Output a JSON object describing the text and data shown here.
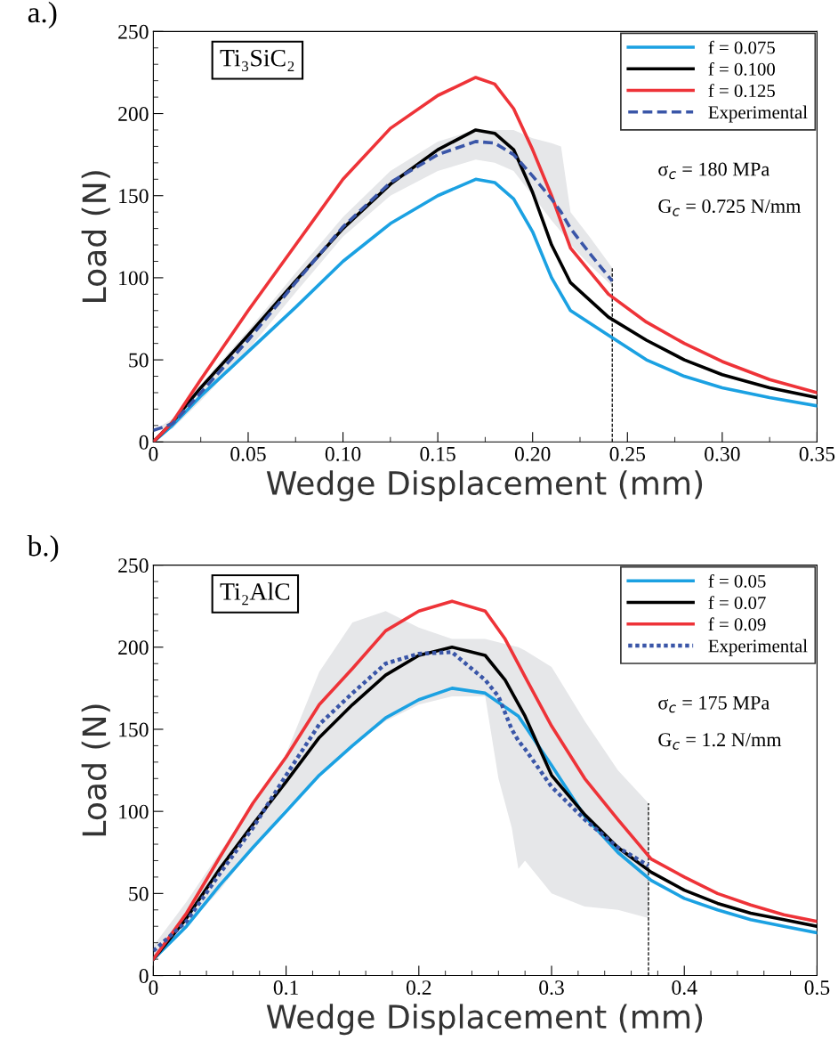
{
  "chart_data": [
    {
      "type": "line",
      "xlabel": "Wedge Displacement (mm)",
      "ylabel": "Load (N)",
      "annotations": [
        "a.)",
        "Ti₃SiC₂",
        "σ$_{c}$ = 180 MPa",
        "G$_{c}$ = 0.725 N/mm"
      ],
      "xlim": [
        0,
        0.35
      ],
      "xticks": [
        0,
        {
          "value": 0.05,
          "label": "0.05"
        },
        {
          "value": 0.1,
          "label": "0.10"
        },
        {
          "value": 0.15,
          "label": "0.15"
        },
        {
          "value": 0.2,
          "label": "0.20"
        },
        {
          "value": 0.25,
          "label": "0.25"
        },
        {
          "value": 0.3,
          "label": "0.30"
        },
        {
          "value": 0.35,
          "label": "0.35"
        }
      ],
      "ylim": [
        0,
        250
      ],
      "yticks": [
        0,
        50,
        100,
        150,
        200,
        250
      ],
      "grid": false,
      "legend": "top right",
      "ref_lines": [
        {
          "axis": "x",
          "value": 0.242,
          "color": "#000000",
          "line_style": "dashed"
        }
      ],
      "series": [
        {
          "name": "f = 0.075",
          "color": "#1ba1e2",
          "line_style": "solid",
          "x": [
            0,
            0.01,
            0.025,
            0.05,
            0.075,
            0.1,
            0.125,
            0.15,
            0.17,
            0.18,
            0.19,
            0.2,
            0.21,
            0.22,
            0.24,
            0.26,
            0.28,
            0.3,
            0.325,
            0.35
          ],
          "values": [
            0,
            10,
            28,
            55,
            82,
            110,
            133,
            150,
            160,
            158,
            148,
            128,
            100,
            80,
            65,
            50,
            40,
            33,
            27,
            22
          ]
        },
        {
          "name": "f = 0.100",
          "color": "#000000",
          "line_style": "solid",
          "x": [
            0,
            0.01,
            0.025,
            0.05,
            0.075,
            0.1,
            0.125,
            0.15,
            0.17,
            0.18,
            0.19,
            0.2,
            0.21,
            0.22,
            0.24,
            0.26,
            0.28,
            0.3,
            0.325,
            0.35
          ],
          "values": [
            0,
            12,
            33,
            65,
            98,
            130,
            157,
            178,
            190,
            188,
            178,
            152,
            120,
            97,
            76,
            62,
            50,
            41,
            33,
            27
          ]
        },
        {
          "name": "f = 0.125",
          "color": "#ee3338",
          "line_style": "solid",
          "x": [
            0,
            0.01,
            0.025,
            0.05,
            0.075,
            0.1,
            0.125,
            0.15,
            0.17,
            0.18,
            0.19,
            0.2,
            0.21,
            0.22,
            0.24,
            0.26,
            0.28,
            0.3,
            0.325,
            0.35
          ],
          "values": [
            0,
            12,
            38,
            80,
            120,
            160,
            191,
            211,
            222,
            218,
            203,
            178,
            150,
            118,
            90,
            73,
            60,
            49,
            38,
            30
          ]
        },
        {
          "name": "Experimental",
          "color": "#3a56a8",
          "line_style": "dashed",
          "x": [
            0,
            0.01,
            0.025,
            0.05,
            0.075,
            0.1,
            0.125,
            0.15,
            0.17,
            0.18,
            0.19,
            0.2,
            0.21,
            0.215,
            0.22,
            0.23,
            0.242
          ],
          "values": [
            7,
            11,
            30,
            62,
            97,
            131,
            158,
            175,
            183,
            182,
            175,
            162,
            148,
            140,
            130,
            115,
            98
          ],
          "upper": [
            7,
            14,
            35,
            68,
            103,
            137,
            165,
            183,
            190,
            190,
            190,
            185,
            182,
            180,
            140,
            125,
            106
          ],
          "lower": [
            7,
            8,
            25,
            56,
            91,
            125,
            150,
            165,
            172,
            170,
            165,
            150,
            135,
            128,
            120,
            108,
            95
          ]
        }
      ]
    },
    {
      "type": "line",
      "xlabel": "Wedge Displacement (mm)",
      "ylabel": "Load (N)",
      "annotations": [
        "b.)",
        "Ti₂AlC",
        "σ$_{c}$ = 175 MPa",
        "G$_{c}$ = 1.2 N/mm"
      ],
      "xlim": [
        0,
        0.5
      ],
      "xticks": [
        0,
        0.1,
        0.2,
        0.3,
        0.4,
        0.5
      ],
      "ylim": [
        0,
        250
      ],
      "yticks": [
        0,
        50,
        100,
        150,
        200,
        250
      ],
      "grid": false,
      "legend": "top right",
      "ref_lines": [
        {
          "axis": "x",
          "value": 0.373,
          "color": "#000000",
          "line_style": "dashed"
        }
      ],
      "series": [
        {
          "name": "f = 0.05",
          "color": "#1ba1e2",
          "line_style": "solid",
          "x": [
            0,
            0.025,
            0.05,
            0.075,
            0.1,
            0.125,
            0.15,
            0.175,
            0.2,
            0.225,
            0.25,
            0.275,
            0.3,
            0.325,
            0.35,
            0.375,
            0.4,
            0.425,
            0.45,
            0.475,
            0.5
          ],
          "values": [
            10,
            30,
            55,
            78,
            100,
            122,
            140,
            157,
            168,
            175,
            172,
            158,
            128,
            97,
            75,
            58,
            47,
            40,
            34,
            30,
            26
          ]
        },
        {
          "name": "f = 0.07",
          "color": "#000000",
          "line_style": "solid",
          "x": [
            0,
            0.025,
            0.05,
            0.075,
            0.1,
            0.125,
            0.15,
            0.175,
            0.2,
            0.225,
            0.25,
            0.265,
            0.28,
            0.3,
            0.325,
            0.35,
            0.375,
            0.4,
            0.425,
            0.45,
            0.475,
            0.5
          ],
          "values": [
            10,
            35,
            65,
            92,
            118,
            145,
            165,
            183,
            195,
            200,
            195,
            180,
            158,
            122,
            98,
            78,
            63,
            52,
            44,
            38,
            34,
            30
          ]
        },
        {
          "name": "f = 0.09",
          "color": "#ee3338",
          "line_style": "solid",
          "x": [
            0,
            0.025,
            0.05,
            0.075,
            0.1,
            0.125,
            0.15,
            0.175,
            0.2,
            0.225,
            0.25,
            0.265,
            0.28,
            0.3,
            0.325,
            0.35,
            0.375,
            0.4,
            0.425,
            0.45,
            0.475,
            0.5
          ],
          "values": [
            10,
            38,
            72,
            105,
            133,
            165,
            187,
            210,
            222,
            228,
            222,
            205,
            182,
            152,
            120,
            95,
            71,
            60,
            50,
            43,
            37,
            33
          ]
        },
        {
          "name": "Experimental",
          "color": "#3a56a8",
          "line_style": "dotted",
          "x": [
            0,
            0.025,
            0.05,
            0.075,
            0.1,
            0.125,
            0.15,
            0.175,
            0.2,
            0.225,
            0.25,
            0.26,
            0.27,
            0.275,
            0.28,
            0.3,
            0.325,
            0.35,
            0.373
          ],
          "values": [
            15,
            33,
            62,
            90,
            122,
            153,
            172,
            190,
            196,
            197,
            180,
            170,
            150,
            143,
            138,
            115,
            95,
            78,
            67
          ],
          "upper": [
            18,
            45,
            75,
            105,
            135,
            185,
            215,
            222,
            212,
            205,
            205,
            203,
            201,
            200,
            198,
            188,
            155,
            125,
            105
          ],
          "lower": [
            10,
            30,
            52,
            78,
            102,
            122,
            140,
            155,
            165,
            170,
            170,
            120,
            90,
            65,
            70,
            50,
            42,
            40,
            35
          ]
        }
      ]
    }
  ]
}
